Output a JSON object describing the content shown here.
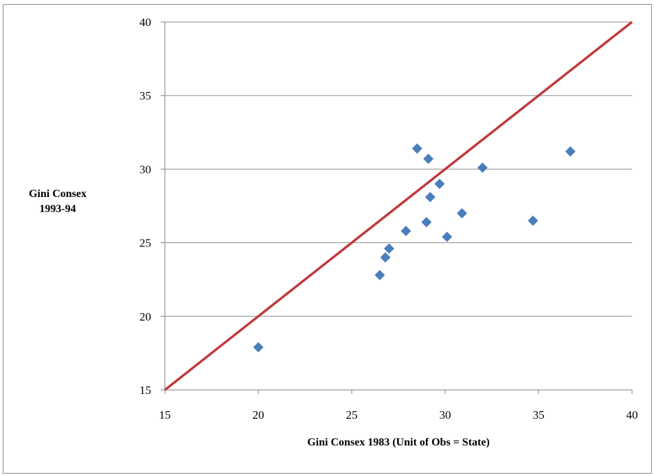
{
  "chart_data": {
    "type": "scatter",
    "title": "",
    "xlabel": "Gini Consex  1983 (Unit of Obs = State)",
    "ylabel_lines": [
      "Gini Consex",
      "1993-94"
    ],
    "xlim": [
      15,
      40
    ],
    "ylim": [
      15,
      40
    ],
    "xticks": [
      15,
      20,
      25,
      30,
      35,
      40
    ],
    "yticks": [
      15,
      20,
      25,
      30,
      35,
      40
    ],
    "grid": "horizontal",
    "points": [
      {
        "x": 20.0,
        "y": 17.9
      },
      {
        "x": 26.5,
        "y": 22.8
      },
      {
        "x": 26.8,
        "y": 24.0
      },
      {
        "x": 27.0,
        "y": 24.6
      },
      {
        "x": 27.9,
        "y": 25.8
      },
      {
        "x": 29.0,
        "y": 26.4
      },
      {
        "x": 30.1,
        "y": 25.4
      },
      {
        "x": 30.9,
        "y": 27.0
      },
      {
        "x": 29.2,
        "y": 28.1
      },
      {
        "x": 29.7,
        "y": 29.0
      },
      {
        "x": 28.5,
        "y": 31.4
      },
      {
        "x": 29.1,
        "y": 30.7
      },
      {
        "x": 32.0,
        "y": 30.1
      },
      {
        "x": 34.7,
        "y": 26.5
      },
      {
        "x": 36.7,
        "y": 31.2
      }
    ],
    "reference_line": {
      "from": [
        15,
        15
      ],
      "to": [
        40,
        40
      ],
      "color": "#c0393b"
    },
    "marker_color": "#4a7ebb"
  }
}
